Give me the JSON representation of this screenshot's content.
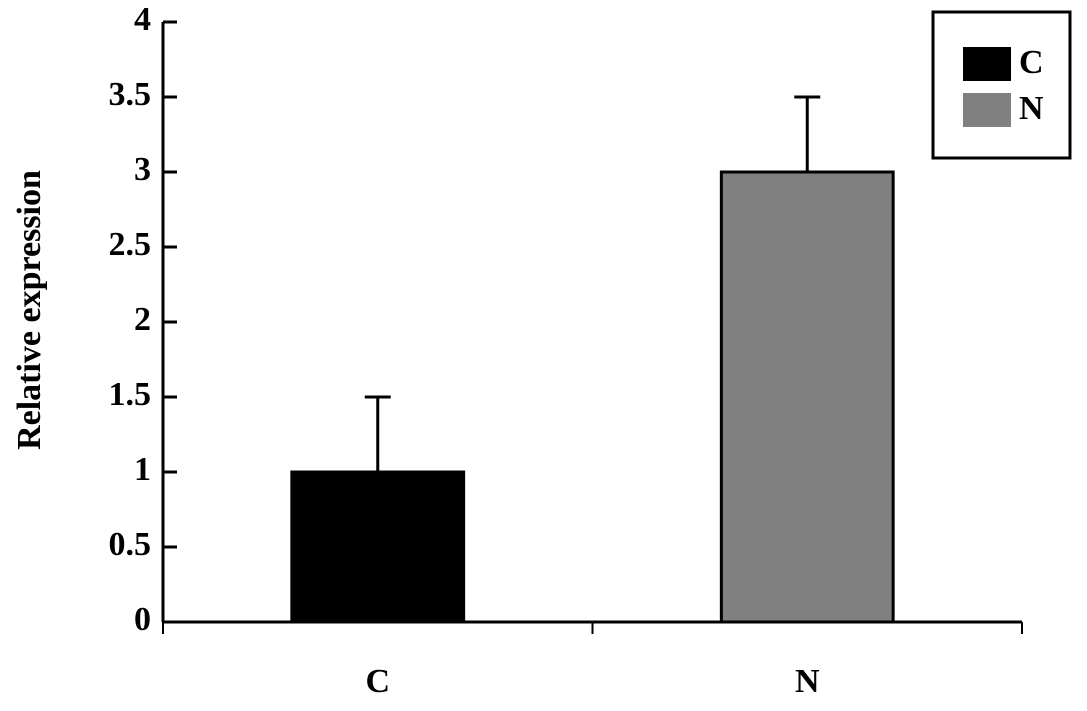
{
  "chart_data": {
    "type": "bar",
    "ylabel": "Relative expression",
    "categories": [
      "C",
      "N"
    ],
    "values": [
      1,
      3
    ],
    "errors": [
      0.5,
      0.5
    ],
    "colors": [
      "#000000",
      "#808080"
    ],
    "ylim": [
      0,
      4
    ],
    "yticks": [
      0,
      0.5,
      1,
      1.5,
      2,
      2.5,
      3,
      3.5,
      4
    ],
    "legend": "upper right",
    "grid": false
  }
}
